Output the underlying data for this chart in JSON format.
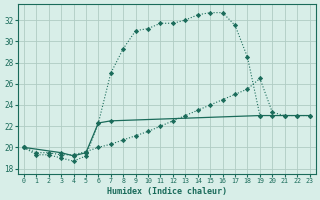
{
  "xlabel": "Humidex (Indice chaleur)",
  "bg_color": "#d8eee8",
  "grid_color": "#b0ccc4",
  "line_color": "#1a6b5a",
  "xlim": [
    -0.5,
    23.5
  ],
  "ylim": [
    17.5,
    33.5
  ],
  "xticks": [
    0,
    1,
    2,
    3,
    4,
    5,
    6,
    7,
    8,
    9,
    10,
    11,
    12,
    13,
    14,
    15,
    16,
    17,
    18,
    19,
    20,
    21,
    22,
    23
  ],
  "yticks": [
    18,
    20,
    22,
    24,
    26,
    28,
    30,
    32
  ],
  "line1_x": [
    0,
    1,
    2,
    3,
    4,
    5,
    6,
    7,
    8,
    9,
    10,
    11,
    12,
    13,
    14,
    15,
    16,
    17,
    18,
    19
  ],
  "line1_y": [
    20.0,
    19.3,
    19.3,
    19.0,
    18.7,
    19.2,
    22.3,
    27.0,
    29.3,
    31.0,
    31.2,
    31.7,
    31.7,
    32.0,
    32.5,
    32.7,
    32.7,
    31.5,
    28.5,
    23.0
  ],
  "line2_x": [
    0,
    3,
    4,
    5,
    6,
    7,
    19,
    20,
    21,
    22,
    23
  ],
  "line2_y": [
    20.0,
    19.5,
    19.2,
    19.5,
    22.3,
    22.5,
    23.0,
    23.0,
    23.0,
    23.0,
    23.0
  ],
  "line3_x": [
    0,
    1,
    2,
    3,
    4,
    5,
    6,
    7,
    8,
    9,
    10,
    11,
    12,
    13,
    14,
    15,
    16,
    17,
    18,
    19,
    20,
    21,
    22,
    23
  ],
  "line3_y": [
    20.0,
    19.5,
    19.5,
    19.3,
    19.3,
    19.6,
    20.0,
    20.3,
    20.7,
    21.1,
    21.5,
    22.0,
    22.5,
    23.0,
    23.5,
    24.0,
    24.5,
    25.0,
    25.5,
    26.5,
    23.3,
    23.0,
    23.0,
    23.0
  ]
}
